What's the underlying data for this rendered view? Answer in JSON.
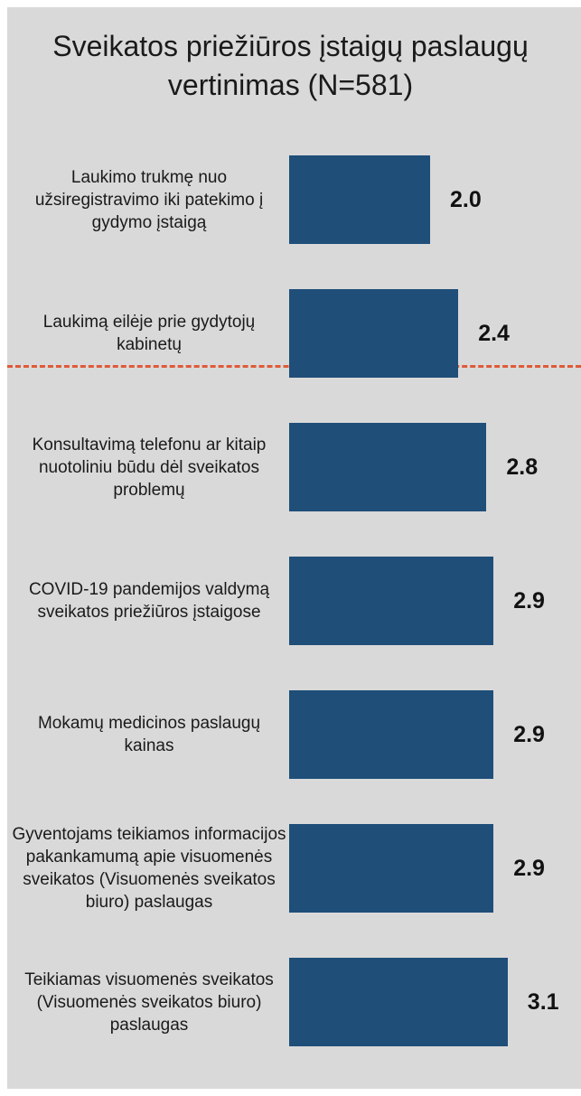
{
  "chart_data": {
    "type": "barh",
    "title": "Sveikatos priežiūros įstaigų paslaugų vertinimas (N=581)",
    "categories": [
      "Laukimo trukmę nuo užsiregistravimo iki patekimo į gydymo įstaigą",
      "Laukimą eilėje prie gydytojų kabinetų",
      "Konsultavimą telefonu ar kitaip nuotoliniu būdu dėl sveikatos problemų",
      "COVID-19 pandemijos valdymą sveikatos priežiūros įstaigose",
      "Mokamų medicinos paslaugų kainas",
      "Gyventojams teikiamos informacijos pakankamumą apie visuomenės sveikatos (Visuomenės sveikatos biuro) paslaugas",
      "Teikiamas visuomenės sveikatos (Visuomenės sveikatos biuro) paslaugas"
    ],
    "values": [
      2.0,
      2.4,
      2.8,
      2.9,
      2.9,
      2.9,
      3.1
    ],
    "value_labels": [
      "2.0",
      "2.4",
      "2.8",
      "2.9",
      "2.9",
      "2.9",
      "3.1"
    ],
    "color": "#1f4e79",
    "xlim": [
      0,
      4
    ]
  }
}
